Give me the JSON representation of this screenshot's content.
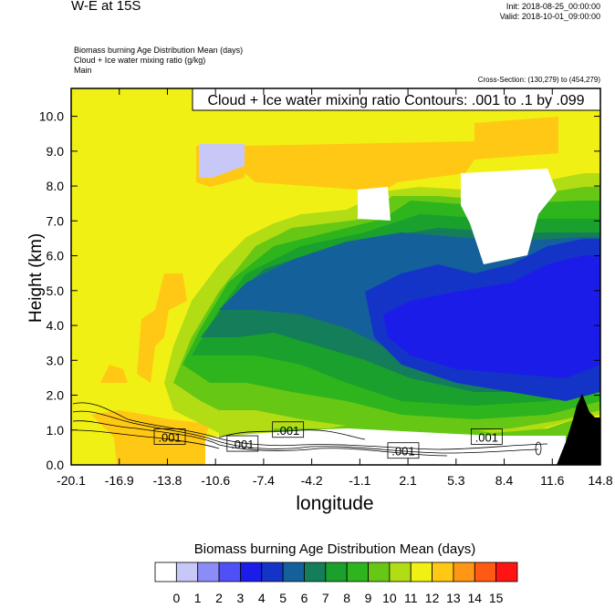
{
  "header": {
    "title": "W-E at 15S",
    "init_line": "Init: 2018-08-25_00:00:00",
    "valid_line": "Valid: 2018-10-01_09:00:00",
    "fields": [
      "Biomass burning Age Distribution Mean   (days)",
      "Cloud + Ice water mixing ratio   (g/kg)",
      "Main"
    ],
    "cross_section": "Cross-Section: (130,279) to (454,279)"
  },
  "chart_data": {
    "type": "heatmap",
    "contour_title": "Cloud + Ice water mixing ratio Contours: .001 to .1 by .099",
    "xlabel": "longitude",
    "ylabel": "Height (km)",
    "x_ticks": [
      "-20.1",
      "-16.9",
      "-13.8",
      "-10.6",
      "-7.4",
      "-4.2",
      "-1.1",
      "2.1",
      "5.3",
      "8.4",
      "11.6",
      "14.8"
    ],
    "y_ticks": [
      "0.0",
      "1.0",
      "2.0",
      "3.0",
      "4.0",
      "5.0",
      "6.0",
      "7.0",
      "8.0",
      "9.0",
      "10.0"
    ],
    "xlim": [
      -20.1,
      14.8
    ],
    "ylim": [
      0,
      10.8
    ],
    "contour_labels": [
      {
        "text": ".001",
        "x": -13.6,
        "y": 0.8
      },
      {
        "text": ".001",
        "x": -8.8,
        "y": 0.6
      },
      {
        "text": ".001",
        "x": -5.8,
        "y": 1.0
      },
      {
        "text": ".001",
        "x": 1.8,
        "y": 0.4
      },
      {
        "text": ".001",
        "x": 7.3,
        "y": 0.8
      }
    ],
    "colorbar": {
      "title": "Biomass burning Age Distribution Mean  (days)",
      "labels": [
        "0",
        "1",
        "2",
        "3",
        "4",
        "5",
        "6",
        "7",
        "8",
        "9",
        "10",
        "11",
        "12",
        "13",
        "14",
        "15"
      ],
      "colors": [
        "#ffffff",
        "#c8c8f8",
        "#8c8cf8",
        "#5050f8",
        "#1c1ce8",
        "#1434c8",
        "#14609a",
        "#147d5a",
        "#1aa02c",
        "#2eb41c",
        "#66c814",
        "#b2dc14",
        "#f0f014",
        "#ffc814",
        "#ff9614",
        "#ff5a14",
        "#ff1414"
      ]
    }
  }
}
